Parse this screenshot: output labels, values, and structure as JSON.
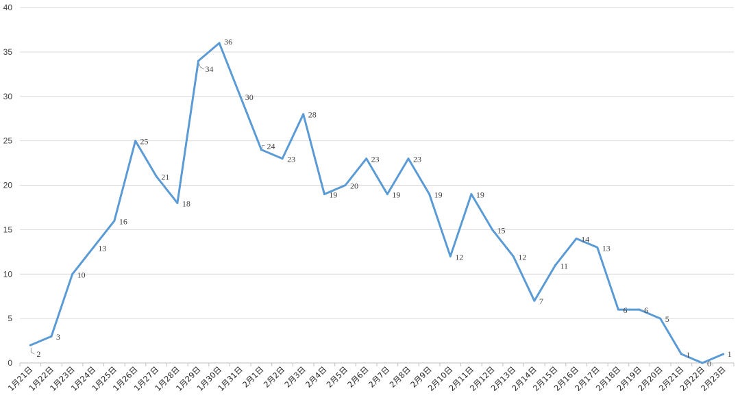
{
  "chart_data": {
    "type": "line",
    "categories": [
      "1月21日",
      "1月22日",
      "1月23日",
      "1月24日",
      "1月25日",
      "1月26日",
      "1月27日",
      "1月28日",
      "1月29日",
      "1月30日",
      "1月31日",
      "2月1日",
      "2月2日",
      "2月3日",
      "2月4日",
      "2月5日",
      "2月6日",
      "2月7日",
      "2月8日",
      "2月9日",
      "2月10日",
      "2月11日",
      "2月12日",
      "2月13日",
      "2月14日",
      "2月15日",
      "2月16日",
      "2月17日",
      "2月18日",
      "2月19日",
      "2月20日",
      "2月21日",
      "2月22日",
      "2月23日"
    ],
    "series": [
      {
        "values": [
          2,
          3,
          10,
          13,
          16,
          25,
          21,
          18,
          34,
          36,
          30,
          24,
          23,
          28,
          19,
          20,
          23,
          19,
          23,
          19,
          12,
          19,
          15,
          12,
          7,
          11,
          14,
          13,
          6,
          6,
          5,
          1,
          0,
          1
        ],
        "color": "#5b9bd5"
      }
    ],
    "ylim": [
      0,
      40
    ],
    "yticks": [
      0,
      5,
      10,
      15,
      20,
      25,
      30,
      35,
      40
    ],
    "grid": "horizontal",
    "data_labels": true,
    "legend": "none",
    "title": "",
    "xlabel": "",
    "ylabel": ""
  }
}
